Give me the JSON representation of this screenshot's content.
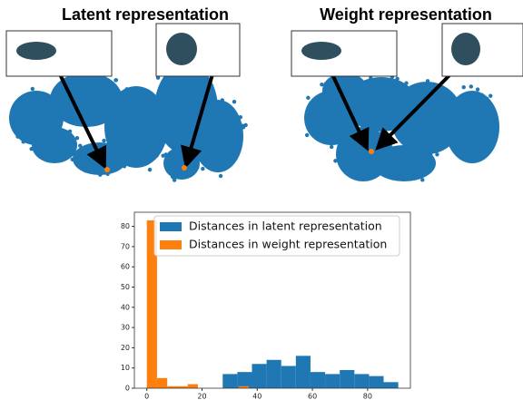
{
  "figure": {
    "panels": [
      {
        "title": "Latent representation"
      },
      {
        "title": "Weight representation"
      }
    ]
  },
  "chart_data": {
    "type": "histogram",
    "series": [
      {
        "name": "Distances in latent representation",
        "color": "#1f77b4",
        "bins": [
          27.5,
          32.8,
          38.1,
          43.4,
          48.7,
          54,
          59.3,
          64.6,
          69.9,
          75.2,
          80.5,
          85.8,
          91.1
        ],
        "values": [
          7,
          8,
          12,
          14,
          11,
          16,
          8,
          7,
          9,
          7,
          6,
          3
        ]
      },
      {
        "name": "Distances in weight representation",
        "color": "#ff7f0e",
        "bins": [
          0,
          3.7,
          7.4,
          11.1,
          14.8,
          18.5,
          22.2,
          25.9,
          29.6,
          33.3,
          37
        ],
        "values": [
          83,
          5,
          1,
          1,
          2,
          0,
          0,
          0,
          0,
          1
        ]
      }
    ],
    "xlim": [
      -4.5,
      95.5
    ],
    "xticks": [
      0,
      20,
      40,
      60,
      80
    ],
    "ylim": [
      0,
      87
    ],
    "yticks": [
      0,
      10,
      20,
      30,
      40,
      50,
      60,
      70,
      80
    ],
    "legend": "upper-left"
  }
}
